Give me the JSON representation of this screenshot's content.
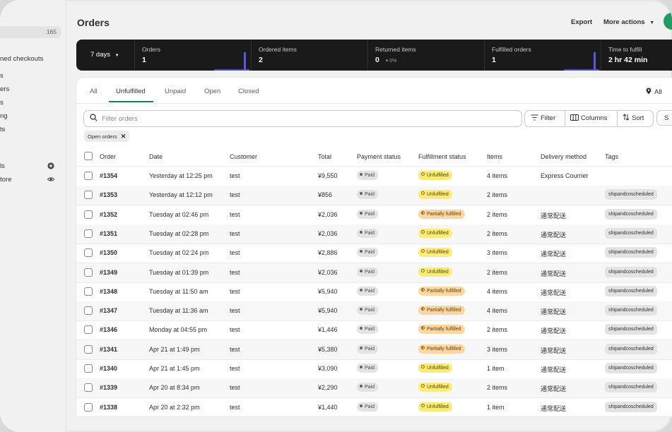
{
  "sidebar": {
    "badge": "165",
    "items": [
      {
        "label": "ned checkouts"
      },
      {
        "label": "s"
      },
      {
        "label": "ers"
      },
      {
        "label": "s"
      },
      {
        "label": "ng"
      },
      {
        "label": "ts"
      },
      {
        "label": "ls"
      },
      {
        "label": "tore"
      }
    ]
  },
  "header": {
    "title": "Orders",
    "export_label": "Export",
    "more_actions_label": "More actions"
  },
  "metrics": {
    "range_label": "7 days",
    "items": [
      {
        "label": "Orders",
        "value": "1"
      },
      {
        "label": "Ordered items",
        "value": "2"
      },
      {
        "label": "Returned items",
        "value": "0",
        "sub": "0%"
      },
      {
        "label": "Fulfilled orders",
        "value": "1"
      },
      {
        "label": "Time to fulfill",
        "value": "2 hr 42 min"
      }
    ]
  },
  "tabs": [
    "All",
    "Unfulfilled",
    "Unpaid",
    "Open",
    "Closed"
  ],
  "active_tab": "Unfulfilled",
  "location_label": "All",
  "search": {
    "placeholder": "Filter orders"
  },
  "toolbar": {
    "filter": "Filter",
    "columns": "Columns",
    "sort": "Sort",
    "s": "S"
  },
  "active_filter_chip": "Open orders",
  "table": {
    "headers": [
      "Order",
      "Date",
      "Customer",
      "Total",
      "Payment status",
      "Fulfillment status",
      "Items",
      "Delivery method",
      "Tags"
    ],
    "rows": [
      {
        "order": "#1354",
        "date": "Yesterday at 12:25 pm",
        "customer": "test",
        "total": "¥9,550",
        "payment": "Paid",
        "fulfillment": "Unfulfilled",
        "items": "4 items",
        "delivery": "Express Courrier",
        "tag": ""
      },
      {
        "order": "#1353",
        "date": "Yesterday at 12:12 pm",
        "customer": "test",
        "total": "¥856",
        "payment": "Paid",
        "fulfillment": "Unfulfilled",
        "items": "2 items",
        "delivery": "",
        "tag": "shipandcoscheduled"
      },
      {
        "order": "#1352",
        "date": "Tuesday at 02:46 pm",
        "customer": "test",
        "total": "¥2,036",
        "payment": "Paid",
        "fulfillment": "Partially fulfilled",
        "items": "2 items",
        "delivery": "通常配送",
        "tag": "shipandcoscheduled"
      },
      {
        "order": "#1351",
        "date": "Tuesday at 02:28 pm",
        "customer": "test",
        "total": "¥2,036",
        "payment": "Paid",
        "fulfillment": "Unfulfilled",
        "items": "2 items",
        "delivery": "通常配送",
        "tag": "shipandcoscheduled"
      },
      {
        "order": "#1350",
        "date": "Tuesday at 02:24 pm",
        "customer": "test",
        "total": "¥2,886",
        "payment": "Paid",
        "fulfillment": "Unfulfilled",
        "items": "3 items",
        "delivery": "通常配送",
        "tag": "shipandcoscheduled"
      },
      {
        "order": "#1349",
        "date": "Tuesday at 01:39 pm",
        "customer": "test",
        "total": "¥2,036",
        "payment": "Paid",
        "fulfillment": "Unfulfilled",
        "items": "2 items",
        "delivery": "通常配送",
        "tag": "shipandcoscheduled"
      },
      {
        "order": "#1348",
        "date": "Tuesday at 11:50 am",
        "customer": "test",
        "total": "¥5,940",
        "payment": "Paid",
        "fulfillment": "Partially fulfilled",
        "items": "4 items",
        "delivery": "通常配送",
        "tag": "shipandcoscheduled"
      },
      {
        "order": "#1347",
        "date": "Tuesday at 11:36 am",
        "customer": "test",
        "total": "¥5,940",
        "payment": "Paid",
        "fulfillment": "Partially fulfilled",
        "items": "4 items",
        "delivery": "通常配送",
        "tag": "shipandcoscheduled"
      },
      {
        "order": "#1346",
        "date": "Monday at 04:55 pm",
        "customer": "test",
        "total": "¥1,446",
        "payment": "Paid",
        "fulfillment": "Partially fulfilled",
        "items": "2 items",
        "delivery": "通常配送",
        "tag": "shipandcoscheduled"
      },
      {
        "order": "#1341",
        "date": "Apr 21 at 1:49 pm",
        "customer": "test",
        "total": "¥5,380",
        "payment": "Paid",
        "fulfillment": "Partially fulfilled",
        "items": "3 items",
        "delivery": "通常配送",
        "tag": "shipandcoscheduled"
      },
      {
        "order": "#1340",
        "date": "Apr 21 at 1:45 pm",
        "customer": "test",
        "total": "¥3,090",
        "payment": "Paid",
        "fulfillment": "Unfulfilled",
        "items": "1 item",
        "delivery": "通常配送",
        "tag": "shipandcoscheduled"
      },
      {
        "order": "#1339",
        "date": "Apr 20 at 8:34 pm",
        "customer": "test",
        "total": "¥2,290",
        "payment": "Paid",
        "fulfillment": "Unfulfilled",
        "items": "2 items",
        "delivery": "通常配送",
        "tag": "shipandcoscheduled"
      },
      {
        "order": "#1338",
        "date": "Apr 20 at 2:32 pm",
        "customer": "test",
        "total": "¥1,440",
        "payment": "Paid",
        "fulfillment": "Unfulfilled",
        "items": "1 item",
        "delivery": "通常配送",
        "tag": "shipandcoscheduled"
      }
    ]
  }
}
